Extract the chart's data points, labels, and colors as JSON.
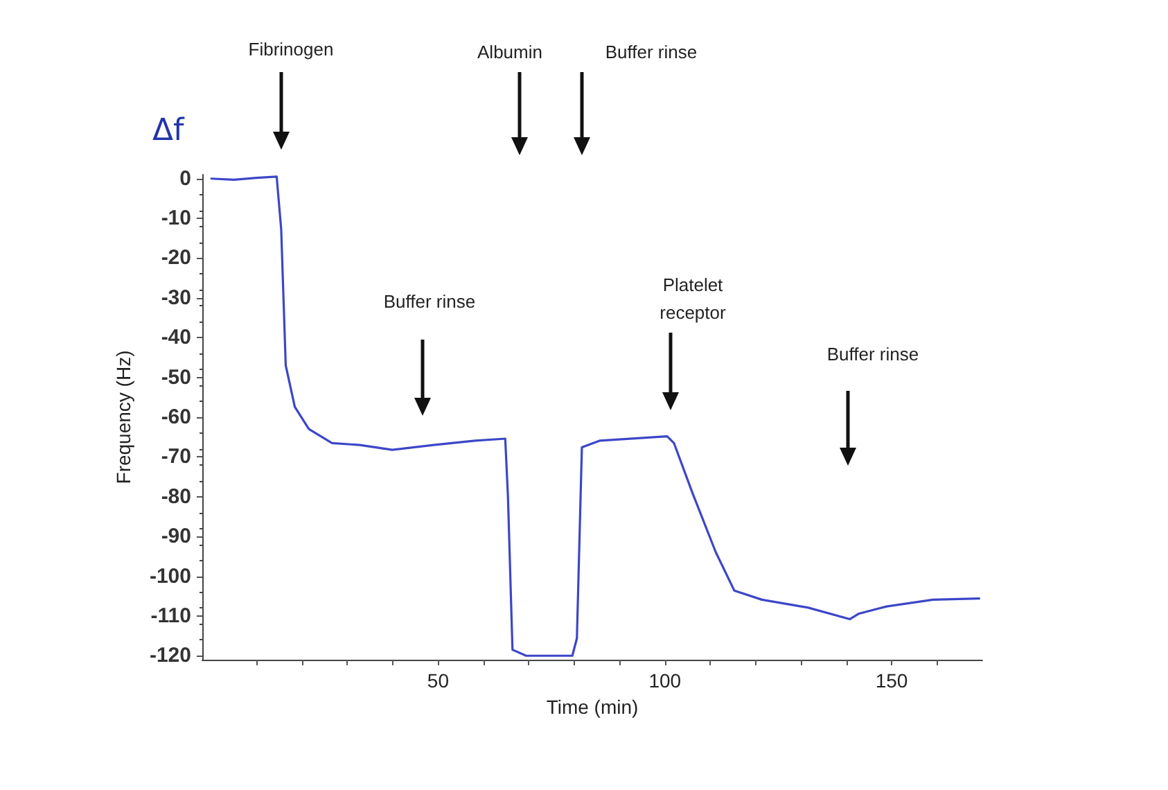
{
  "chart_data": {
    "type": "line",
    "xlabel": "Time (min)",
    "ylabel": "Frequency (Hz)",
    "xlim": [
      -2,
      170
    ],
    "ylim": [
      -121,
      1
    ],
    "xticks": [
      {
        "value": 10,
        "label": null
      },
      {
        "value": 20,
        "label": null
      },
      {
        "value": 30,
        "label": null
      },
      {
        "value": 40,
        "label": null
      },
      50,
      {
        "value": 60,
        "label": null
      },
      {
        "value": 70,
        "label": null
      },
      {
        "value": 80,
        "label": null
      },
      {
        "value": 90,
        "label": null
      },
      100,
      {
        "value": 110,
        "label": null
      },
      {
        "value": 120,
        "label": null
      },
      {
        "value": 130,
        "label": null
      },
      {
        "value": 140,
        "label": null
      },
      150,
      {
        "value": 160,
        "label": null
      }
    ],
    "yticks": [
      0,
      -10,
      -20,
      -30,
      -40,
      -50,
      -60,
      -70,
      -80,
      -90,
      -100,
      -110,
      -120
    ],
    "series": [
      {
        "color": "#3c46c8",
        "x": [
          0,
          5,
          10,
          14.4,
          15.4,
          16.4,
          18.4,
          21.5,
          26.6,
          32.7,
          39.9,
          49,
          58.2,
          64.8,
          65.4,
          66.4,
          69.4,
          75,
          79.6,
          80.6,
          81.7,
          85.7,
          100.5,
          102,
          106.1,
          111.2,
          115.3,
          121.4,
          131.6,
          140.8,
          142.8,
          148.9,
          159.1,
          169.3
        ],
        "values": [
          0,
          -0.3,
          0.2,
          0.5,
          -12.8,
          -47,
          -57.4,
          -63,
          -66.5,
          -67,
          -68.2,
          -67,
          -65.9,
          -65.4,
          -80,
          -118.5,
          -120,
          -120,
          -120,
          -115.6,
          -67.6,
          -65.9,
          -64.8,
          -66.5,
          -79.1,
          -93.9,
          -103.6,
          -105.9,
          -107.9,
          -110.8,
          -109.4,
          -107.6,
          -105.9,
          -105.6
        ]
      }
    ],
    "annotations": [
      "Δf",
      "Fibrinogen",
      "Buffer rinse",
      "Albumin",
      "Buffer rinse",
      "Platelet receptor",
      "Buffer rinse"
    ]
  }
}
